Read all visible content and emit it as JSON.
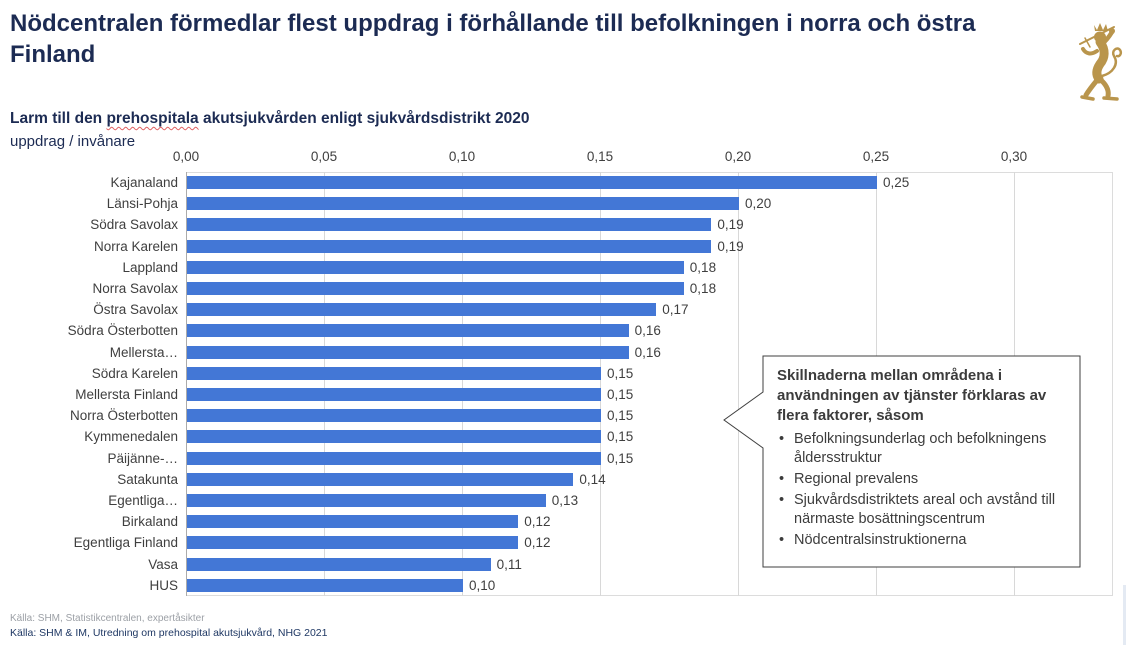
{
  "slide": {
    "title": "Nödcentralen förmedlar flest uppdrag i förhållande till befolkningen i norra och östra Finland",
    "subtitle": {
      "pre": "Larm till den ",
      "misspelled_word": "prehospitala",
      "post": " akutsjukvården enligt sjukvårdsdistrikt 2020"
    },
    "unit_label": "uppdrag / invånare",
    "logo": "finnish-coat-of-arms"
  },
  "chart_data": {
    "type": "bar",
    "orientation": "horizontal",
    "title": "Larm till den prehospitala akutsjukvården enligt sjukvårdsdistrikt 2020",
    "xlabel": "uppdrag / invånare",
    "categories": [
      "Kajanaland",
      "Länsi-Pohja",
      "Södra Savolax",
      "Norra Karelen",
      "Lappland",
      "Norra Savolax",
      "Östra Savolax",
      "Södra Österbotten",
      "Mellersta…",
      "Södra Karelen",
      "Mellersta Finland",
      "Norra Österbotten",
      "Kymmenedalen",
      "Päijänne-…",
      "Satakunta",
      "Egentliga…",
      "Birkaland",
      "Egentliga Finland",
      "Vasa",
      "HUS"
    ],
    "values": [
      0.25,
      0.2,
      0.19,
      0.19,
      0.18,
      0.18,
      0.17,
      0.16,
      0.16,
      0.15,
      0.15,
      0.15,
      0.15,
      0.15,
      0.14,
      0.13,
      0.12,
      0.12,
      0.11,
      0.1
    ],
    "value_labels": [
      "0,25",
      "0,20",
      "0,19",
      "0,19",
      "0,18",
      "0,18",
      "0,17",
      "0,16",
      "0,16",
      "0,15",
      "0,15",
      "0,15",
      "0,15",
      "0,15",
      "0,14",
      "0,13",
      "0,12",
      "0,12",
      "0,11",
      "0,10"
    ],
    "x_ticks": [
      "0,00",
      "0,05",
      "0,10",
      "0,15",
      "0,20",
      "0,25",
      "0,30"
    ],
    "x_tick_values": [
      0,
      0.05,
      0.1,
      0.15,
      0.2,
      0.25,
      0.3
    ],
    "xlim": [
      0,
      0.335
    ],
    "grid": true,
    "legend": "none",
    "bar_color": "#4377D6"
  },
  "callout": {
    "heading": "Skillnaderna mellan områdena i användningen av tjänster förklaras av flera faktorer, såsom",
    "bullets": [
      "Befolkningsunderlag och befolkningens åldersstruktur",
      "Regional prevalens",
      "Sjukvårdsdistriktets areal och avstånd till närmaste bosättningscentrum",
      "Nödcentralsinstruktionerna"
    ]
  },
  "footer": {
    "source_line_1": "Källa: SHM, Statistikcentralen, expertåsikter",
    "source_line_2": "Källa: SHM & IM, Utredning om prehospital akutsjukvård, NHG 2021"
  },
  "colors": {
    "bar_blue": "#4377D6",
    "title_navy": "#1C2B53",
    "footer_navy": "#1F3864",
    "footer_gray": "#9CA0A6",
    "coat_of_arms_gold": "#B9954C"
  }
}
